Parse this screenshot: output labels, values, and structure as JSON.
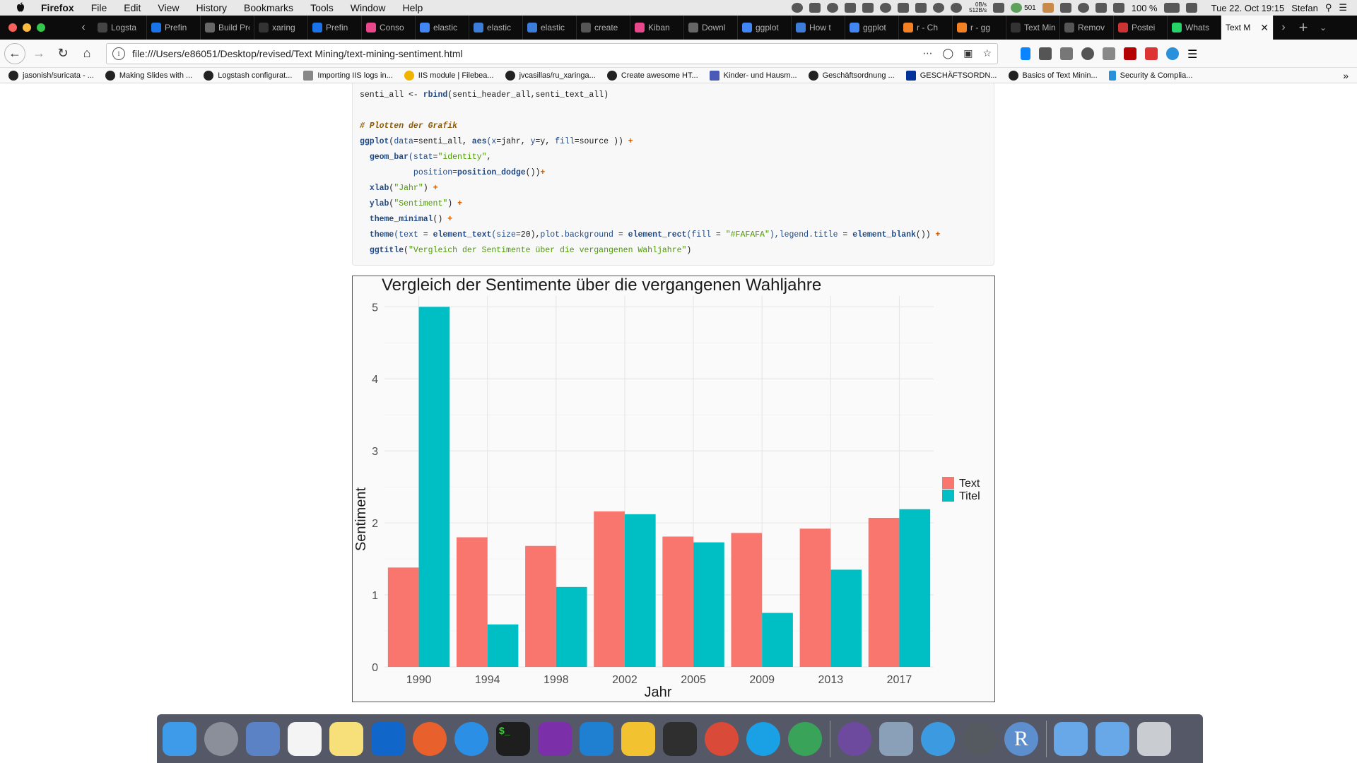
{
  "menubar": {
    "app": "Firefox",
    "items": [
      "File",
      "Edit",
      "View",
      "History",
      "Bookmarks",
      "Tools",
      "Window",
      "Help"
    ],
    "net_up": "0B/s",
    "net_down": "512B/s",
    "badge": "501",
    "battery": "100 %",
    "datetime": "Tue 22. Oct  19:15",
    "user": "Stefan"
  },
  "tabs": [
    {
      "label": "Logsta",
      "color": "#444444"
    },
    {
      "label": "Prefin",
      "color": "#1a73e8"
    },
    {
      "label": "Build Pres",
      "color": "#666666"
    },
    {
      "label": "xaring",
      "color": "#333333"
    },
    {
      "label": "Prefin",
      "color": "#1a73e8"
    },
    {
      "label": "Conso",
      "color": "#e8478b"
    },
    {
      "label": "elastic",
      "color": "#4285f4"
    },
    {
      "label": "elastic",
      "color": "#3b7dd8"
    },
    {
      "label": "elastic",
      "color": "#3b7dd8"
    },
    {
      "label": "create",
      "color": "#555555"
    },
    {
      "label": "Kiban",
      "color": "#e8478b"
    },
    {
      "label": "Downl",
      "color": "#666666"
    },
    {
      "label": "ggplot",
      "color": "#4285f4"
    },
    {
      "label": "How t",
      "color": "#3b7dd8"
    },
    {
      "label": "ggplot",
      "color": "#4285f4"
    },
    {
      "label": "r - Ch",
      "color": "#f48024"
    },
    {
      "label": "r - gg",
      "color": "#f48024"
    },
    {
      "label": "Text Minin",
      "color": "#333333"
    },
    {
      "label": "Remov",
      "color": "#555555"
    },
    {
      "label": "Postei",
      "color": "#cc3333"
    },
    {
      "label": "Whats",
      "color": "#25d366"
    }
  ],
  "active_tab": {
    "label": "Text M"
  },
  "url": "file:///Users/e86051/Desktop/revised/Text Mining/text-mining-sentiment.html",
  "bookmarks": [
    "jasonish/suricata - ...",
    "Making Slides with ...",
    "Logstash configurat...",
    "Importing IIS logs in...",
    "IIS module | Filebea...",
    "jvcasillas/ru_xaringa...",
    "Create awesome HT...",
    "Kinder- und Hausm...",
    "Geschäftsordnung ...",
    "GESCHÄFTSORDN...",
    "Basics of Text Minin...",
    "Security & Complia..."
  ],
  "code": {
    "line1_var": "senti_all",
    "line1_op": " <- ",
    "line1_fn": "rbind",
    "line1_args": "(senti_header_all,senti_text_all)",
    "comment": "# Plotten der Grafik",
    "l3": {
      "fn": "ggplot",
      "a1": "data",
      "a1v": "=senti_all, ",
      "fn2": "aes",
      "a2": "(x",
      "a2v": "=jahr, ",
      "a3": "y",
      "a3v": "=y, ",
      "a4": "fill",
      "a4v": "=source )) ",
      "plus": "+"
    },
    "l4": {
      "fn": "geom_bar",
      "a1": "(stat",
      "a1v": "=",
      "s1": "\"identity\"",
      "rest": ","
    },
    "l5": {
      "a1": "position",
      "a1v": "=",
      "fn": "position_dodge",
      "rest": "())",
      "plus": "+"
    },
    "l6": {
      "fn": "xlab",
      "s": "\"Jahr\"",
      "plus": "+"
    },
    "l7": {
      "fn": "ylab",
      "s": "\"Sentiment\"",
      "plus": "+"
    },
    "l8": {
      "fn": "theme_minimal",
      "rest": "() ",
      "plus": "+"
    },
    "l9": {
      "fn": "theme",
      "a1": "(text",
      "a1v": " = ",
      "fn2": "element_text",
      "a2": "(size",
      "a2v": "=20),",
      "a3": "plot.background",
      "a3v": " = ",
      "fn3": "element_rect",
      "a4": "(fill",
      "a4v": " = ",
      "s": "\"#FAFAFA\"",
      "a5": "),legend.title",
      "a5v": " = ",
      "fn4": "element_blank",
      "rest": "()) ",
      "plus": "+"
    },
    "l10": {
      "fn": "ggtitle",
      "s": "\"Vergleich der Sentimente über die vergangenen Wahljahre\"",
      "rest": ")"
    }
  },
  "chart_data": {
    "type": "bar",
    "title": "Vergleich der Sentimente über die vergangenen Wahljahre",
    "xlabel": "Jahr",
    "ylabel": "Sentiment",
    "categories": [
      "1990",
      "1994",
      "1998",
      "2002",
      "2005",
      "2009",
      "2013",
      "2017"
    ],
    "series": [
      {
        "name": "Text",
        "color": "#F8766D",
        "values": [
          1.38,
          1.8,
          1.68,
          2.16,
          1.81,
          1.86,
          1.92,
          2.07
        ]
      },
      {
        "name": "Titel",
        "color": "#00BFC4",
        "values": [
          5.0,
          0.59,
          1.11,
          2.12,
          1.73,
          0.75,
          1.35,
          2.19
        ]
      }
    ],
    "ylim": [
      0,
      5.15
    ],
    "yticks": [
      0,
      1,
      2,
      3,
      4,
      5
    ],
    "grid": true,
    "legend": "right",
    "background": "#FAFAFA"
  },
  "dock": {
    "apps": [
      {
        "name": "finder",
        "color": "#3d9be9"
      },
      {
        "name": "launchpad",
        "color": "#8a8f99"
      },
      {
        "name": "mail-stamp",
        "color": "#5b82c4"
      },
      {
        "name": "reminders",
        "color": "#f4f4f4"
      },
      {
        "name": "notes",
        "color": "#f7e07a"
      },
      {
        "name": "outlook",
        "color": "#1066c9"
      },
      {
        "name": "firefox",
        "color": "#e8602c"
      },
      {
        "name": "safari",
        "color": "#2b8fe6"
      },
      {
        "name": "terminal",
        "color": "#1e1e1e"
      },
      {
        "name": "onenote",
        "color": "#7b2fa8"
      },
      {
        "name": "vscode",
        "color": "#1f7fd1"
      },
      {
        "name": "cyberduck",
        "color": "#f2c230"
      },
      {
        "name": "sublime",
        "color": "#2f2f2f"
      },
      {
        "name": "remote-desktop",
        "color": "#d94a38"
      },
      {
        "name": "skype",
        "color": "#1aa0e5"
      },
      {
        "name": "network",
        "color": "#3aa35a"
      },
      {
        "name": "github-desktop",
        "color": "#6e4a9e"
      },
      {
        "name": "preview",
        "color": "#8aa0b8"
      },
      {
        "name": "docker",
        "color": "#3c9be0"
      },
      {
        "name": "system-preferences",
        "color": "#555a60"
      },
      {
        "name": "r-app",
        "color": "#5d8fcf"
      },
      {
        "name": "applications-folder",
        "color": "#69a8e8"
      },
      {
        "name": "downloads-folder",
        "color": "#69a8e8"
      },
      {
        "name": "trash",
        "color": "#c9ccd0"
      }
    ],
    "terminal_glyph": "$_",
    "r_glyph": "R"
  }
}
